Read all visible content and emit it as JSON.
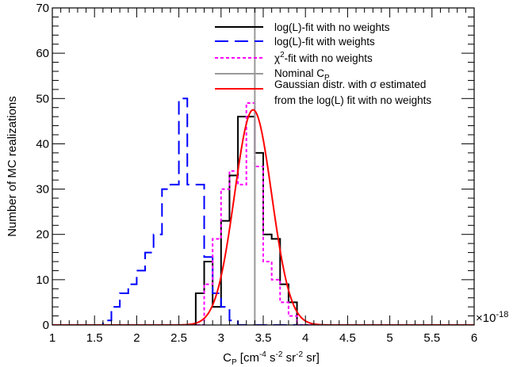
{
  "chart_data": {
    "type": "line",
    "xlabel": "C_P [cm^-4 s^-2 sr^-2 sr]",
    "ylabel": "Number of MC realizations",
    "x_multiplier": "×10^-18",
    "xlim": [
      1,
      6
    ],
    "ylim": [
      0,
      70
    ],
    "x_ticks": [
      "1",
      "1.5",
      "2",
      "2.5",
      "3",
      "3.5",
      "4",
      "4.5",
      "5",
      "5.5",
      "6"
    ],
    "y_ticks": [
      "0",
      "10",
      "20",
      "30",
      "40",
      "50",
      "60",
      "70"
    ],
    "legend_position": "top-right",
    "grid": false,
    "bin_edges": [
      1.0,
      1.1,
      1.2,
      1.3,
      1.4,
      1.5,
      1.6,
      1.7,
      1.8,
      1.9,
      2.0,
      2.1,
      2.2,
      2.3,
      2.4,
      2.5,
      2.6,
      2.7,
      2.8,
      2.9,
      3.0,
      3.1,
      3.2,
      3.3,
      3.4,
      3.5,
      3.6,
      3.7,
      3.8,
      3.9,
      4.0,
      4.1,
      4.2,
      4.3,
      4.4,
      4.5,
      4.6,
      4.7,
      4.8,
      4.9,
      5.0,
      5.1,
      5.2,
      5.3,
      5.4,
      5.5,
      5.6,
      5.7,
      5.8,
      5.9,
      6.0
    ],
    "series": [
      {
        "name": "log(L)-fit with no weights",
        "style": "hist",
        "color": "#000000",
        "dash": "",
        "values": [
          0,
          0,
          0,
          0,
          0,
          0,
          0,
          0,
          0,
          0,
          0,
          0,
          0,
          0,
          0,
          0,
          0,
          7,
          14,
          4,
          23,
          33,
          46,
          46,
          38,
          20,
          19,
          9,
          5,
          0,
          0,
          0,
          0,
          0,
          0,
          0,
          0,
          0,
          0,
          0,
          0,
          0,
          0,
          0,
          0,
          0,
          0,
          0,
          0,
          0
        ]
      },
      {
        "name": "log(L)-fit with weights",
        "style": "hist",
        "color": "#0000ff",
        "dash": "17,8",
        "values": [
          0,
          0,
          0,
          0,
          0,
          0,
          1,
          4,
          7,
          9,
          12,
          16,
          20,
          30,
          31,
          50,
          31,
          31,
          15,
          7,
          4,
          1,
          0,
          0,
          0,
          0,
          0,
          0,
          0,
          0,
          0,
          0,
          0,
          0,
          0,
          0,
          0,
          0,
          0,
          0,
          0,
          0,
          0,
          0,
          0,
          0,
          0,
          0,
          0,
          0
        ]
      },
      {
        "name": "χ²-fit with no weights",
        "style": "hist",
        "color": "#ff00ff",
        "dash": "4,3",
        "values": [
          0,
          0,
          0,
          0,
          0,
          0,
          0,
          0,
          0,
          0,
          0,
          0,
          0,
          0,
          0,
          0,
          0,
          0,
          9,
          19,
          30,
          34,
          31,
          49,
          35,
          14,
          10,
          5,
          2,
          0,
          0,
          0,
          0,
          0,
          0,
          0,
          0,
          0,
          0,
          0,
          0,
          0,
          0,
          0,
          0,
          0,
          0,
          0,
          0,
          0
        ]
      },
      {
        "name": "Nominal C_P",
        "style": "vline",
        "color": "#9a9a9a",
        "dash": "",
        "x": 3.4
      },
      {
        "name": "Gaussian distr. with σ estimated from the log(L) fit with no weights",
        "style": "gauss",
        "color": "#ff0000",
        "dash": "",
        "amplitude": 47.5,
        "mean": 3.38,
        "sigma": 0.22
      }
    ]
  }
}
